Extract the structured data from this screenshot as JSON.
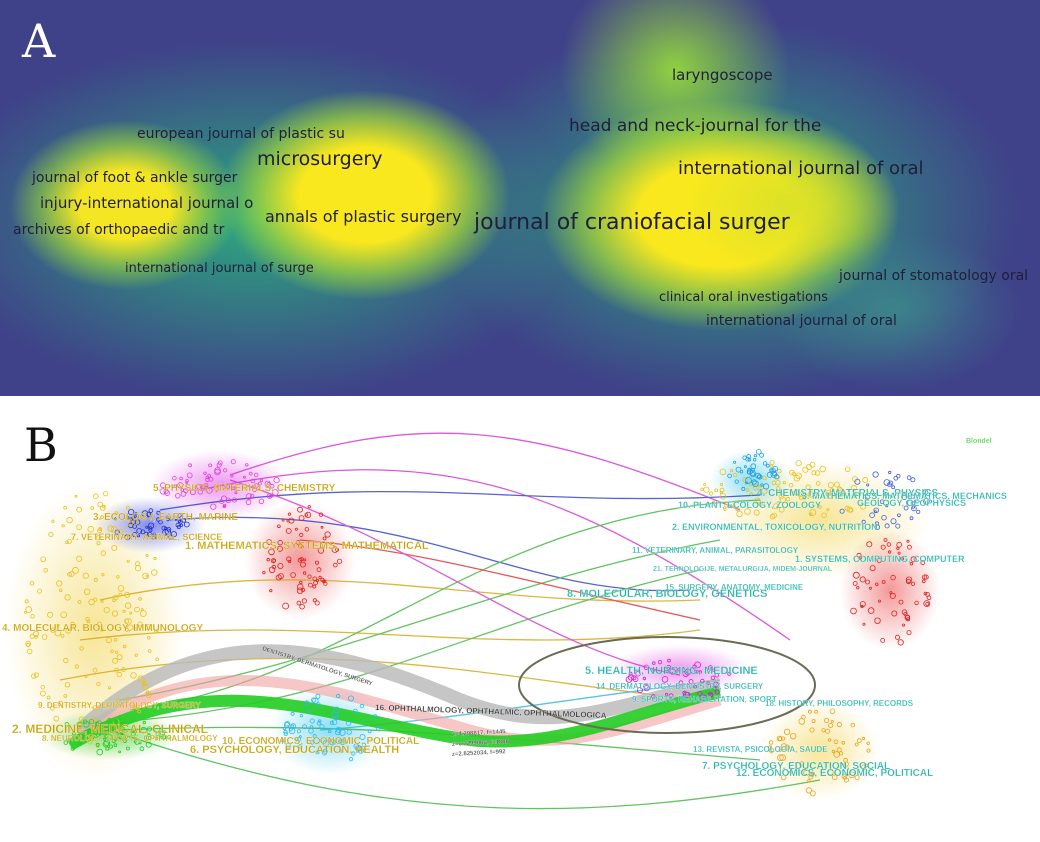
{
  "panel_a": {
    "letter": "A",
    "terms": [
      {
        "text": "laryngoscope",
        "size": 15
      },
      {
        "text": "european journal of plastic su",
        "size": 14
      },
      {
        "text": "head and neck-journal for the",
        "size": 17
      },
      {
        "text": "microsurgery",
        "size": 19
      },
      {
        "text": "international journal of oral",
        "size": 18
      },
      {
        "text": "journal of foot & ankle surger",
        "size": 14
      },
      {
        "text": "injury-international journal o",
        "size": 15
      },
      {
        "text": "annals of plastic surgery",
        "size": 16
      },
      {
        "text": "journal of craniofacial surger",
        "size": 22
      },
      {
        "text": "archives of orthopaedic and tr",
        "size": 14
      },
      {
        "text": "international journal of surge",
        "size": 13
      },
      {
        "text": "journal of stomatology oral",
        "size": 14
      },
      {
        "text": "clinical oral investigations",
        "size": 13
      },
      {
        "text": "international journal of oral",
        "size": 14
      }
    ]
  },
  "panel_b": {
    "letter": "B",
    "algorithm_label": "Blondel",
    "left_labels": [
      "5. PHYSICS, MATERIALS, CHEMISTRY",
      "3. ECOLOGY, EARTH, MARINE",
      "7. VETERINARY, ANIMAL, SCIENCE",
      "1. MATHEMATICS, SYSTEMS, MATHEMATICAL",
      "4. MOLECULAR, BIOLOGY, IMMUNOLOGY",
      "9. DENTISTRY, DERMATOLOGY, SURGERY",
      "2. MEDICINE, MEDICAL, CLINICAL",
      "8. NEUROLOGY, SPORTS, OPHTHALMOLOGY",
      "10. ECONOMICS, ECONOMIC, POLITICAL",
      "6. PSYCHOLOGY, EDUCATION, HEALTH"
    ],
    "right_labels": [
      "4. CHEMISTRY, MATERIALS, PHYSICS",
      "10. PLANT, ECOLOGY, ZOOLOGY",
      "3. MATHEMATICS, MATHEMATICS, MECHANICS",
      "GEOLOGY, GEOPHYSICS",
      "2. ENVIRONMENTAL, TOXICOLOGY, NUTRITION",
      "11. VETERINARY, ANIMAL, PARASITOLOGY",
      "1. SYSTEMS, COMPUTING, COMPUTER",
      "21. TEHNOLOGIJE, METALURGIJA, MIDEM-JOURNAL",
      "15. SURGERY, ANATOMY, MEDICINE",
      "8. MOLECULAR, BIOLOGY, GENETICS",
      "5. HEALTH, NURSING, MEDICINE",
      "14. DERMATOLOGY, DENTISTRY, SURGERY",
      "9. SPORTS, REHABILITATION, SPORT",
      "18. HISTORY, PHILOSOPHY, RECORDS",
      "13. REVISTA, PSICOLOGIA, SAUDE",
      "7. PSYCHOLOGY, EDUCATION, SOCIAL",
      "12. ECONOMICS, ECONOMIC, POLITICAL"
    ],
    "flow_labels": [
      "DENTISTRY, DERMATOLOGY, SURGERY",
      "16. OPHTHALMOLOGY, OPHTHALMIC, OPHTHALMOLOGICA",
      "z=4.298817, f=1445",
      "z=6.7299006, f=1888",
      "z=2.8252034, f=992"
    ],
    "colors": {
      "label_left": "#c8a000",
      "label_right": "#1fb3a8",
      "flow_green": "#22cc22",
      "flow_gray": "#b8b8b8",
      "flow_pink": "#f2a0a0",
      "ellipse": "#6b6b55"
    }
  }
}
